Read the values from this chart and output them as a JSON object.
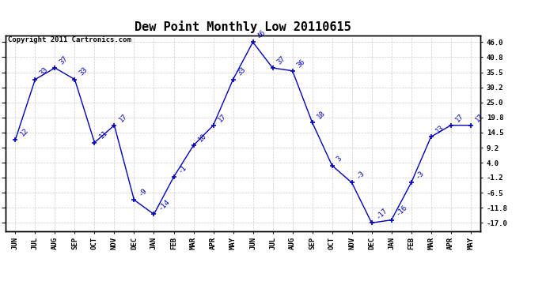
{
  "title": "Dew Point Monthly Low 20110615",
  "copyright": "Copyright 2011 Cartronics.com",
  "months": [
    "JUN",
    "JUL",
    "AUG",
    "SEP",
    "OCT",
    "NOV",
    "DEC",
    "JAN",
    "FEB",
    "MAR",
    "APR",
    "MAY",
    "JUN",
    "JUL",
    "AUG",
    "SEP",
    "OCT",
    "NOV",
    "DEC",
    "JAN",
    "FEB",
    "MAR",
    "APR",
    "MAY"
  ],
  "values": [
    12,
    33,
    37,
    33,
    11,
    17,
    -9,
    -14,
    -1,
    10,
    17,
    33,
    46,
    37,
    36,
    18,
    3,
    -3,
    -17,
    -16,
    -3,
    13,
    17,
    17
  ],
  "ylim_min": -19.8,
  "ylim_max": 48.3,
  "yticks": [
    -17.0,
    -11.8,
    -6.5,
    -1.2,
    4.0,
    9.2,
    14.5,
    19.8,
    25.0,
    30.2,
    35.5,
    40.8,
    46.0
  ],
  "line_color": "#0000bb",
  "bg_color": "#ffffff",
  "grid_color": "#cccccc",
  "title_fontsize": 11,
  "annot_fontsize": 6.5,
  "copy_fontsize": 6.5,
  "tick_fontsize": 6.5
}
